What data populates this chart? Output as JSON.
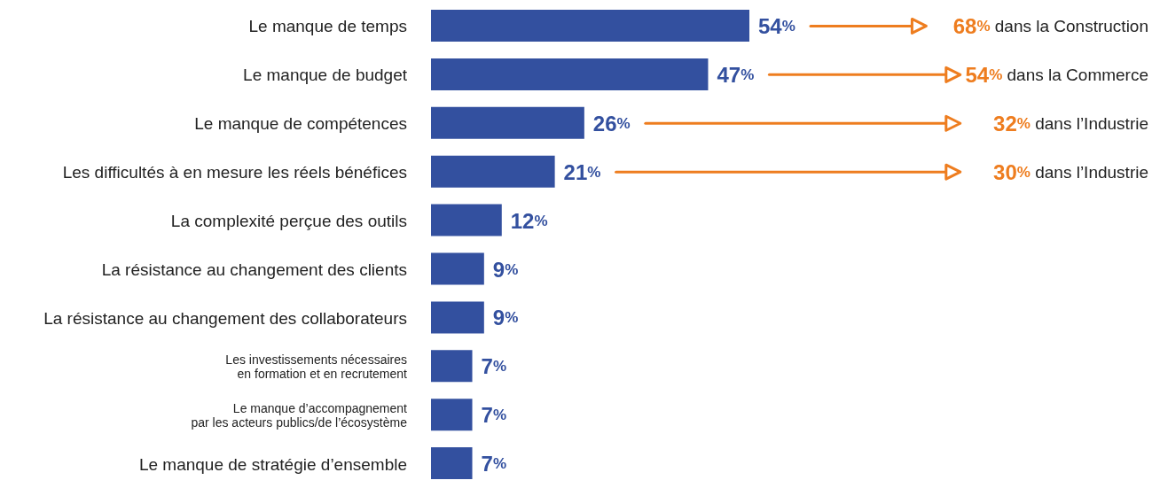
{
  "chart_data": {
    "type": "bar",
    "orientation": "horizontal",
    "color": "#33509f",
    "categories": [
      "Le manque de temps",
      "Le manque de budget",
      "Le manque de compétences",
      "Les difficultés à en mesure les réels bénéfices",
      "La complexité perçue des outils",
      "La résistance au changement des clients",
      "La résistance au changement des collaborateurs",
      "Les investissements nécessaires\nen formation et en recrutement",
      "Le manque d’accompagnement\npar les acteurs publics/de l’écosystème",
      "Le manque de stratégie d’ensemble"
    ],
    "values": [
      54,
      47,
      26,
      21,
      12,
      9,
      9,
      7,
      7,
      7
    ],
    "value_labels": [
      "54%",
      "47%",
      "26%",
      "21%",
      "12%",
      "9%",
      "9%",
      "7%",
      "7%",
      "7%"
    ],
    "annotations": [
      "68% dans la Construction",
      "54% dans la Commerce",
      "32% dans l’Industrie",
      "30% dans l’Industrie"
    ]
  }
}
